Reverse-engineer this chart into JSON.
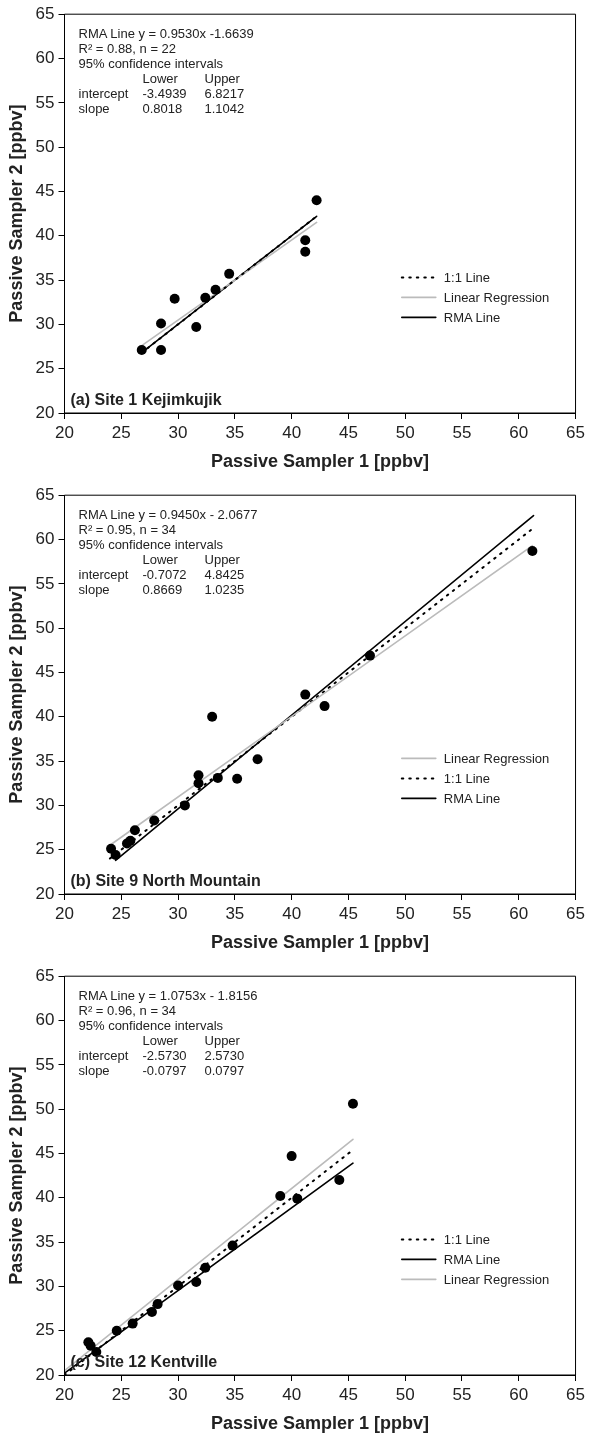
{
  "chart_data": [
    {
      "type": "scatter",
      "title": "(a) Site 1 Kejimkujik",
      "xlabel": "Passive Sampler 1 [ppbv]",
      "ylabel": "Passive Sampler 2 [ppbv]",
      "annotations": [
        "RMA Line y = 0.9530x -1.6639",
        "R² = 0.88, n = 22",
        "95% confidence intervals",
        "  Lower  Upper",
        "intercept  -3.4939  6.8217",
        "slope  0.8018  1.1042"
      ],
      "xlim": [
        20,
        65
      ],
      "ylim": [
        20,
        65
      ],
      "xticks": [
        20,
        25,
        30,
        35,
        40,
        45,
        50,
        55,
        60,
        65
      ],
      "yticks": [
        20,
        25,
        30,
        35,
        40,
        45,
        50,
        55,
        60,
        65
      ],
      "grid": false,
      "legend": "right",
      "series": [
        {
          "type": "scatter",
          "color": "#000000",
          "marker": "circle",
          "x": [
            26.8,
            28.5,
            28.5,
            29.7,
            31.6,
            32.4,
            33.3,
            34.5,
            41.2,
            41.2,
            42.2
          ],
          "values": [
            27.1,
            27.1,
            30.1,
            32.9,
            29.7,
            33.0,
            33.9,
            35.7,
            39.5,
            38.2,
            44.0
          ]
        },
        {
          "type": "line",
          "name": "1:1 Line",
          "color": "#000000",
          "line_style": "dotted",
          "x": [
            26.8,
            42.2
          ],
          "values": [
            26.8,
            42.2
          ]
        },
        {
          "type": "line",
          "name": "Linear Regression",
          "color": "#bbbbbb",
          "line_style": "solid",
          "x": [
            26.8,
            42.2
          ],
          "values": [
            27.6,
            41.5
          ]
        },
        {
          "type": "line",
          "name": "RMA Line",
          "color": "#000000",
          "line_style": "solid",
          "x": [
            27.0,
            42.2
          ],
          "values": [
            27.0,
            42.2
          ]
        }
      ]
    },
    {
      "type": "scatter",
      "title": "(b) Site 9 North Mountain",
      "xlabel": "Passive Sampler 1 [ppbv]",
      "ylabel": "Passive Sampler 2 [ppbv]",
      "annotations": [
        "RMA Line y = 0.9450x - 2.0677",
        "R² = 0.95, n = 34",
        "95% confidence intervals",
        "  Lower  Upper",
        "intercept  -0.7072  4.8425",
        "slope  0.8669  1.0235"
      ],
      "xlim": [
        20,
        65
      ],
      "ylim": [
        20,
        65
      ],
      "xticks": [
        20,
        25,
        30,
        35,
        40,
        45,
        50,
        55,
        60,
        65
      ],
      "yticks": [
        20,
        25,
        30,
        35,
        40,
        45,
        50,
        55,
        60,
        65
      ],
      "grid": false,
      "legend": "right",
      "series": [
        {
          "type": "scatter",
          "color": "#000000",
          "marker": "circle",
          "x": [
            24.1,
            24.5,
            25.5,
            25.8,
            26.2,
            27.9,
            30.6,
            31.8,
            31.8,
            33.0,
            33.5,
            35.2,
            37.0,
            41.2,
            42.9,
            46.9,
            61.2
          ],
          "values": [
            25.1,
            24.4,
            25.7,
            26.0,
            27.2,
            28.3,
            30.0,
            33.4,
            32.5,
            40.0,
            33.1,
            33.0,
            35.2,
            42.5,
            41.2,
            46.9,
            58.7
          ]
        },
        {
          "type": "line",
          "name": "Linear Regression",
          "color": "#bbbbbb",
          "line_style": "solid",
          "x": [
            24.0,
            61.2
          ],
          "values": [
            25.5,
            59.3
          ]
        },
        {
          "type": "line",
          "name": "1:1 Line",
          "color": "#000000",
          "line_style": "dotted",
          "x": [
            24.0,
            61.2
          ],
          "values": [
            24.0,
            61.2
          ]
        },
        {
          "type": "line",
          "name": "RMA Line",
          "color": "#000000",
          "line_style": "solid",
          "x": [
            24.5,
            61.3
          ],
          "values": [
            23.8,
            62.7
          ]
        }
      ]
    },
    {
      "type": "scatter",
      "title": "(c) Site 12 Kentville",
      "xlabel": "Passive Sampler 1 [ppbv]",
      "ylabel": "Passive Sampler 2 [ppbv]",
      "annotations": [
        "RMA Line y = 1.0753x - 1.8156",
        "R² = 0.96, n = 34",
        "95% confidence intervals",
        "  Lower  Upper",
        "intercept  -2.5730  2.5730",
        "slope  -0.0797  0.0797"
      ],
      "xlim": [
        20,
        65
      ],
      "ylim": [
        20,
        65
      ],
      "xticks": [
        20,
        25,
        30,
        35,
        40,
        45,
        50,
        55,
        60,
        65
      ],
      "yticks": [
        20,
        25,
        30,
        35,
        40,
        45,
        50,
        55,
        60,
        65
      ],
      "grid": false,
      "legend": "right",
      "series": [
        {
          "type": "scatter",
          "color": "#000000",
          "marker": "circle",
          "x": [
            22.1,
            22.3,
            22.8,
            24.6,
            26.0,
            27.7,
            28.2,
            30.0,
            31.6,
            32.4,
            34.8,
            39.0,
            40.0,
            40.5,
            44.2,
            45.4
          ],
          "values": [
            23.7,
            23.3,
            22.6,
            25.0,
            25.8,
            27.1,
            28.0,
            30.1,
            30.5,
            32.1,
            34.6,
            40.2,
            44.7,
            39.9,
            42.0,
            50.6
          ]
        },
        {
          "type": "line",
          "name": "1:1 Line",
          "color": "#000000",
          "line_style": "dotted",
          "x": [
            20.0,
            45.4
          ],
          "values": [
            20.0,
            45.4
          ]
        },
        {
          "type": "line",
          "name": "RMA Line",
          "color": "#000000",
          "line_style": "solid",
          "x": [
            20.0,
            45.4
          ],
          "values": [
            20.2,
            43.9
          ]
        },
        {
          "type": "line",
          "name": "Linear Regression",
          "color": "#bbbbbb",
          "line_style": "solid",
          "x": [
            20.0,
            45.4
          ],
          "values": [
            20.5,
            46.6
          ]
        }
      ]
    }
  ]
}
